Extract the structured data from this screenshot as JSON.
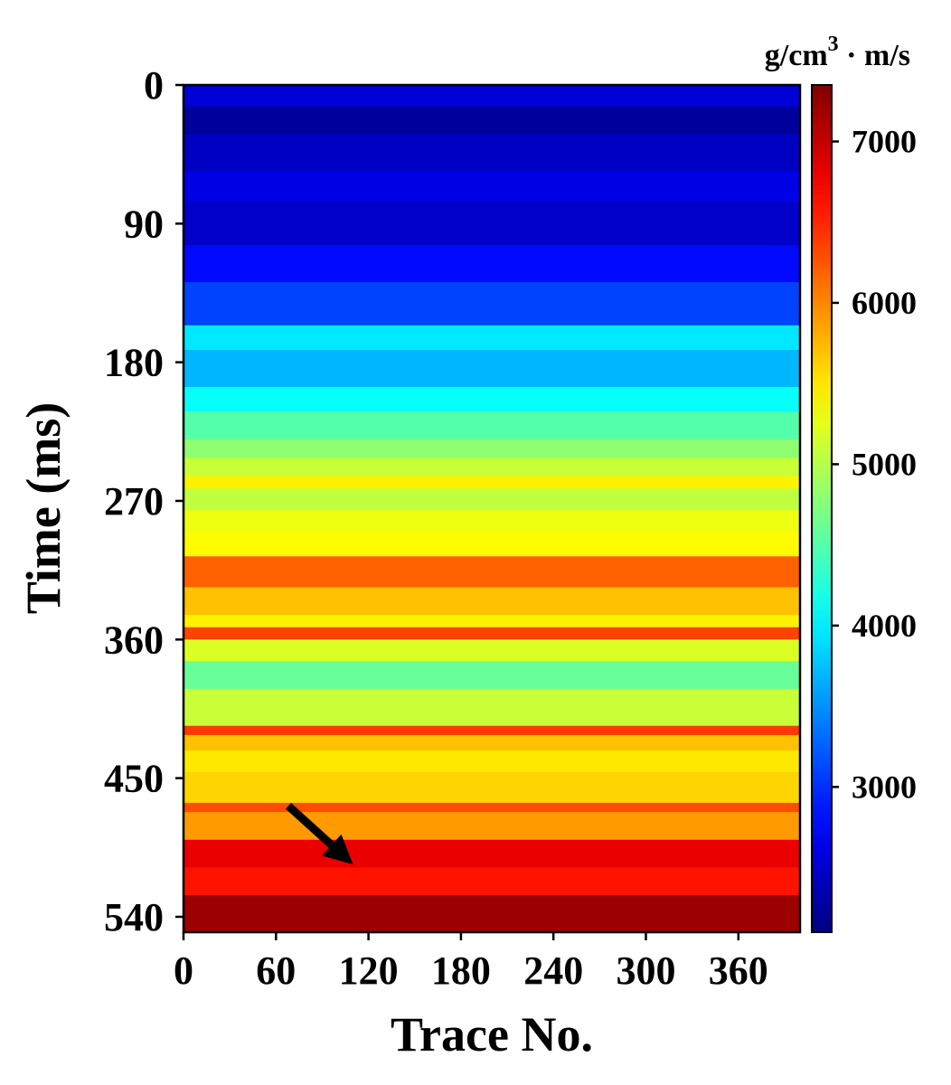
{
  "chart_data": {
    "type": "heatmap",
    "title": "",
    "xlabel": "Trace No.",
    "ylabel": "Time (ms)",
    "x_ticks": [
      0,
      60,
      120,
      180,
      240,
      300,
      360
    ],
    "y_ticks": [
      0,
      90,
      180,
      270,
      360,
      450,
      540
    ],
    "xlim": [
      0,
      400
    ],
    "ylim": [
      0,
      550
    ],
    "y_inverted": true,
    "colormap": "jet",
    "colorbar": {
      "unit_main": "g/cm",
      "unit_sup": "3",
      "unit_rest": " · m/s",
      "ticks": [
        3000,
        4000,
        5000,
        6000,
        7000
      ],
      "range": [
        2100,
        7350
      ]
    },
    "layers": [
      {
        "top": 0,
        "bottom": 14,
        "value": 2550
      },
      {
        "top": 14,
        "bottom": 32,
        "value": 2250
      },
      {
        "top": 32,
        "bottom": 56,
        "value": 2450
      },
      {
        "top": 56,
        "bottom": 76,
        "value": 2620
      },
      {
        "top": 76,
        "bottom": 104,
        "value": 2480
      },
      {
        "top": 104,
        "bottom": 128,
        "value": 2800
      },
      {
        "top": 128,
        "bottom": 156,
        "value": 3100
      },
      {
        "top": 156,
        "bottom": 172,
        "value": 3950
      },
      {
        "top": 172,
        "bottom": 196,
        "value": 3700
      },
      {
        "top": 196,
        "bottom": 212,
        "value": 4100
      },
      {
        "top": 212,
        "bottom": 230,
        "value": 4500
      },
      {
        "top": 230,
        "bottom": 242,
        "value": 4800
      },
      {
        "top": 242,
        "bottom": 254,
        "value": 5100
      },
      {
        "top": 254,
        "bottom": 262,
        "value": 5450
      },
      {
        "top": 262,
        "bottom": 276,
        "value": 5050
      },
      {
        "top": 276,
        "bottom": 290,
        "value": 5300
      },
      {
        "top": 290,
        "bottom": 306,
        "value": 5400
      },
      {
        "top": 306,
        "bottom": 326,
        "value": 6200
      },
      {
        "top": 326,
        "bottom": 344,
        "value": 5700
      },
      {
        "top": 344,
        "bottom": 352,
        "value": 5450
      },
      {
        "top": 352,
        "bottom": 360,
        "value": 6350
      },
      {
        "top": 360,
        "bottom": 374,
        "value": 5200
      },
      {
        "top": 374,
        "bottom": 392,
        "value": 4600
      },
      {
        "top": 392,
        "bottom": 416,
        "value": 5100
      },
      {
        "top": 416,
        "bottom": 422,
        "value": 6400
      },
      {
        "top": 422,
        "bottom": 432,
        "value": 5700
      },
      {
        "top": 432,
        "bottom": 446,
        "value": 5500
      },
      {
        "top": 446,
        "bottom": 466,
        "value": 5600
      },
      {
        "top": 466,
        "bottom": 472,
        "value": 6300
      },
      {
        "top": 472,
        "bottom": 490,
        "value": 5900
      },
      {
        "top": 490,
        "bottom": 508,
        "value": 6800
      },
      {
        "top": 508,
        "bottom": 526,
        "value": 6600
      },
      {
        "top": 526,
        "bottom": 550,
        "value": 7200
      }
    ],
    "annotation": {
      "type": "arrow",
      "from": [
        68,
        468
      ],
      "to": [
        110,
        506
      ]
    }
  }
}
